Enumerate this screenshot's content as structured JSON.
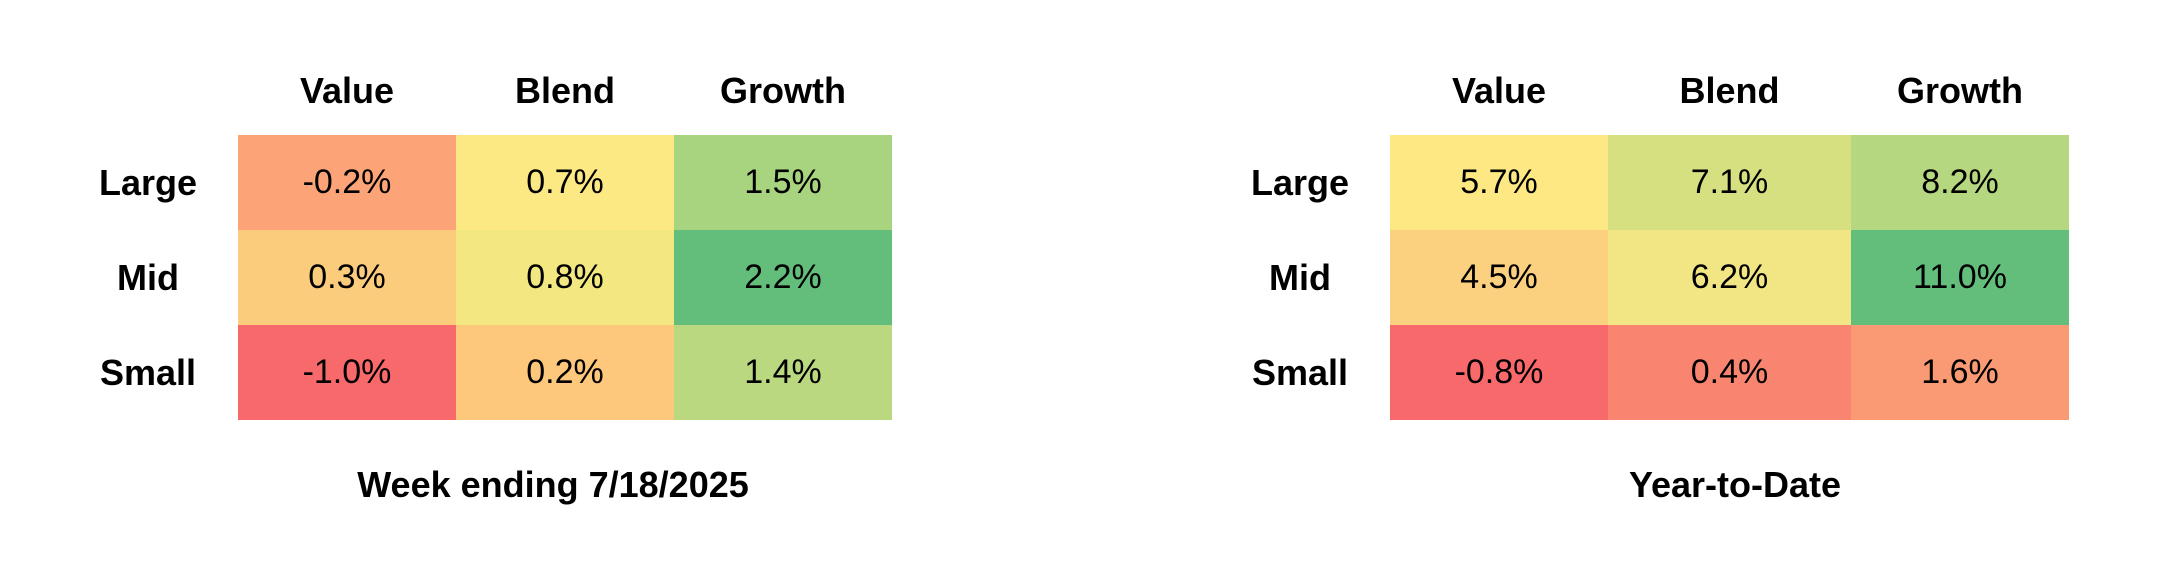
{
  "chart_data": [
    {
      "type": "heatmap",
      "title": "Week ending 7/18/2025",
      "columns": [
        "Value",
        "Blend",
        "Growth"
      ],
      "rows": [
        "Large",
        "Mid",
        "Small"
      ],
      "values": [
        [
          -0.2,
          0.7,
          1.5
        ],
        [
          0.3,
          0.8,
          2.2
        ],
        [
          -1.0,
          0.2,
          1.4
        ]
      ],
      "labels": [
        [
          "-0.2%",
          "0.7%",
          "1.5%"
        ],
        [
          "0.3%",
          "0.8%",
          "2.2%"
        ],
        [
          "-1.0%",
          "0.2%",
          "1.4%"
        ]
      ],
      "colors": [
        [
          "#fca477",
          "#fde983",
          "#a9d47f"
        ],
        [
          "#fccc7d",
          "#f3e782",
          "#63be7b"
        ],
        [
          "#f8696b",
          "#fdc77c",
          "#b9d880"
        ]
      ]
    },
    {
      "type": "heatmap",
      "title": "Year-to-Date",
      "columns": [
        "Value",
        "Blend",
        "Growth"
      ],
      "rows": [
        "Large",
        "Mid",
        "Small"
      ],
      "values": [
        [
          5.7,
          7.1,
          8.2
        ],
        [
          4.5,
          6.2,
          11.0
        ],
        [
          -0.8,
          0.4,
          1.6
        ]
      ],
      "labels": [
        [
          "5.7%",
          "7.1%",
          "8.2%"
        ],
        [
          "4.5%",
          "6.2%",
          "11.0%"
        ],
        [
          "-0.8%",
          "0.4%",
          "1.6%"
        ]
      ],
      "colors": [
        [
          "#fee883",
          "#d6e081",
          "#b5d77f"
        ],
        [
          "#fbd17f",
          "#f1e683",
          "#63be7b"
        ],
        [
          "#f8696b",
          "#f98570",
          "#fa9a74"
        ]
      ]
    }
  ]
}
